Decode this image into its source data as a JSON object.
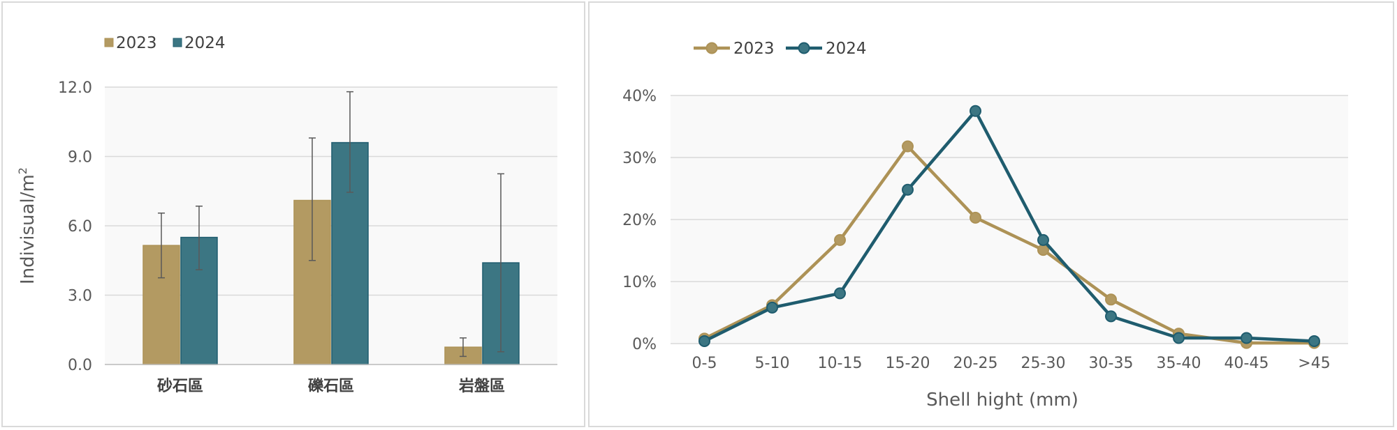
{
  "colors": {
    "series_2023": "#AD9256",
    "series_2023_fill": "#B39A62",
    "series_2024": "#1F5C6E",
    "series_2024_fill": "#3C7683",
    "grid": "#d9d9d9",
    "plot_bg": "#f9f9f9",
    "error_bar": "#595959"
  },
  "chart_data": [
    {
      "type": "bar",
      "legend": [
        "2023",
        "2024"
      ],
      "legend_position": "top-left",
      "ylabel_main": "Indivisual/m",
      "ylabel_sup": "2",
      "xlabel": "",
      "ylim": [
        0,
        12
      ],
      "yticks": [
        0,
        3,
        6,
        9,
        12
      ],
      "ytick_labels": [
        "0.0",
        "3.0",
        "6.0",
        "9.0",
        "12.0"
      ],
      "grid": true,
      "categories": [
        "砂石區",
        "礫石區",
        "岩盤區"
      ],
      "series": [
        {
          "name": "2023",
          "values": [
            5.15,
            7.1,
            0.75
          ],
          "error_low": [
            3.75,
            4.5,
            0.35
          ],
          "error_high": [
            6.55,
            9.8,
            1.15
          ]
        },
        {
          "name": "2024",
          "values": [
            5.5,
            9.6,
            4.4
          ],
          "error_low": [
            4.1,
            7.45,
            0.55
          ],
          "error_high": [
            6.85,
            11.8,
            8.25
          ]
        }
      ]
    },
    {
      "type": "line",
      "legend": [
        "2023",
        "2024"
      ],
      "legend_position": "top-left",
      "xlabel": "Shell hight (mm)",
      "ylabel": "",
      "ylim": [
        0,
        40
      ],
      "yticks": [
        0,
        10,
        20,
        30,
        40
      ],
      "ytick_labels": [
        "0%",
        "10%",
        "20%",
        "30%",
        "40%"
      ],
      "grid": true,
      "x": [
        "0-5",
        "5-10",
        "10-15",
        "15-20",
        "20-25",
        "25-30",
        "30-35",
        "35-40",
        "40-45",
        ">45"
      ],
      "series": [
        {
          "name": "2023",
          "values": [
            0.8,
            6.2,
            16.7,
            31.8,
            20.3,
            15.1,
            7.1,
            1.6,
            0.1,
            0.1
          ]
        },
        {
          "name": "2024",
          "values": [
            0.4,
            5.8,
            8.1,
            24.8,
            37.5,
            16.7,
            4.4,
            0.9,
            0.9,
            0.4
          ]
        }
      ]
    }
  ]
}
